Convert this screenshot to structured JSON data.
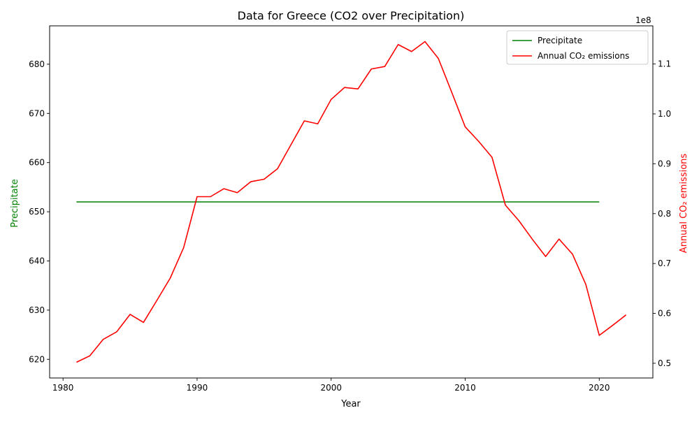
{
  "chart_data": {
    "type": "line",
    "title": "Data for Greece (CO2 over Precipitation)",
    "xlabel": "Year",
    "ylabel_left": "Precipitate",
    "ylabel_right": "Annual CO₂ emissions",
    "right_axis_multiplier": "1e8",
    "xlim": [
      1979,
      2024
    ],
    "ylim_left": [
      616.2,
      687.8
    ],
    "ylim_right": [
      0.4705,
      1.1765
    ],
    "x_ticks": [
      1980,
      1990,
      2000,
      2010,
      2020
    ],
    "y_ticks_left": [
      620,
      630,
      640,
      650,
      660,
      670,
      680
    ],
    "y_ticks_right": [
      0.5,
      0.6,
      0.7,
      0.8,
      0.9,
      1.0,
      1.1
    ],
    "legend_position": "top-right",
    "grid": false,
    "series": [
      {
        "name": "Precipitate",
        "axis": "left",
        "color": "#008000",
        "x": [
          1981,
          2020
        ],
        "values": [
          652,
          652
        ]
      },
      {
        "name": "Annual CO₂ emissions",
        "axis": "right",
        "color": "#ff0000",
        "x": [
          1981,
          1982,
          1983,
          1984,
          1985,
          1986,
          1987,
          1988,
          1989,
          1990,
          1991,
          1992,
          1993,
          1994,
          1995,
          1996,
          1997,
          1998,
          1999,
          2000,
          2001,
          2002,
          2003,
          2004,
          2005,
          2006,
          2007,
          2008,
          2009,
          2010,
          2011,
          2012,
          2013,
          2014,
          2015,
          2016,
          2017,
          2018,
          2019,
          2020,
          2021,
          2022
        ],
        "values": [
          0.502,
          0.515,
          0.548,
          0.563,
          0.598,
          0.582,
          0.626,
          0.671,
          0.732,
          0.834,
          0.834,
          0.85,
          0.842,
          0.864,
          0.869,
          0.89,
          0.938,
          0.986,
          0.98,
          1.029,
          1.053,
          1.05,
          1.09,
          1.095,
          1.139,
          1.125,
          1.145,
          1.111,
          1.043,
          0.974,
          0.945,
          0.913,
          0.817,
          0.786,
          0.749,
          0.714,
          0.749,
          0.719,
          0.658,
          0.556,
          0.576,
          0.597
        ]
      }
    ]
  }
}
